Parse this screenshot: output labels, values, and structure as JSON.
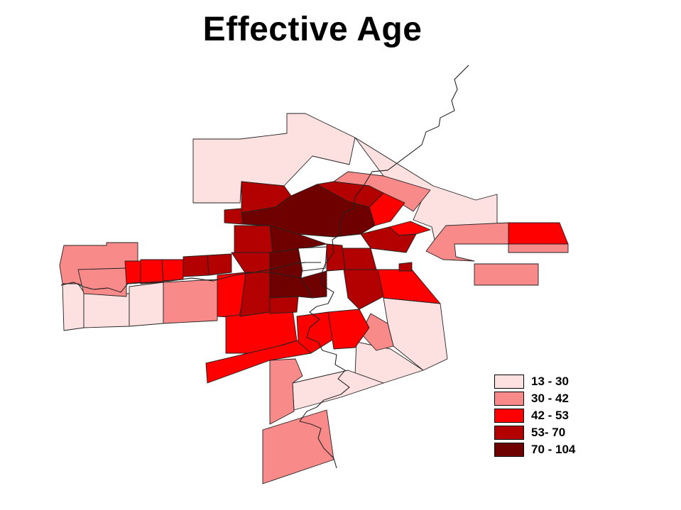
{
  "title": "Effective Age",
  "colors": {
    "class1": "#fde0e0",
    "class2": "#f98a8a",
    "class3": "#ff0000",
    "class4": "#b30000",
    "class5": "#6e0000",
    "river": "#1e1ee6",
    "river_core": "#ffffff"
  },
  "legend": [
    {
      "label": "13 - 30",
      "color": "#fde0e0"
    },
    {
      "label": "30 - 42",
      "color": "#f98a8a"
    },
    {
      "label": "42 - 53",
      "color": "#ff0000"
    },
    {
      "label": "53- 70",
      "color": "#b30000"
    },
    {
      "label": "70 - 104",
      "color": "#6e0000"
    }
  ]
}
